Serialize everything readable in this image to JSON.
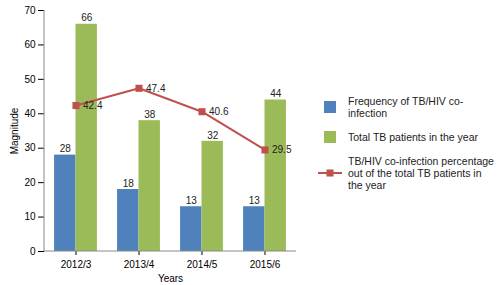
{
  "chart_data": {
    "type": "bar",
    "categories": [
      "2012/3",
      "2013/4",
      "2014/5",
      "2015/6"
    ],
    "series": [
      {
        "name": "Frequency of TB/HIV co-infection",
        "color": "#4f81bd",
        "values": [
          28,
          18,
          13,
          13
        ]
      },
      {
        "name": "Total TB patients in the year",
        "color": "#9bbb59",
        "values": [
          66,
          38,
          32,
          44
        ]
      },
      {
        "name": "TB/HIV co-infection percentage out of the total TB patients in the year",
        "type": "line",
        "color": "#c0504d",
        "marker": "square",
        "values": [
          42.4,
          47.4,
          40.6,
          29.5
        ]
      }
    ],
    "x_label": "Years",
    "y_label": "Magnitude",
    "ylim": [
      0,
      70
    ],
    "yticks": [
      0,
      10,
      20,
      30,
      40,
      50,
      60,
      70
    ],
    "grid": false,
    "data_labels": true,
    "legend": "right"
  }
}
